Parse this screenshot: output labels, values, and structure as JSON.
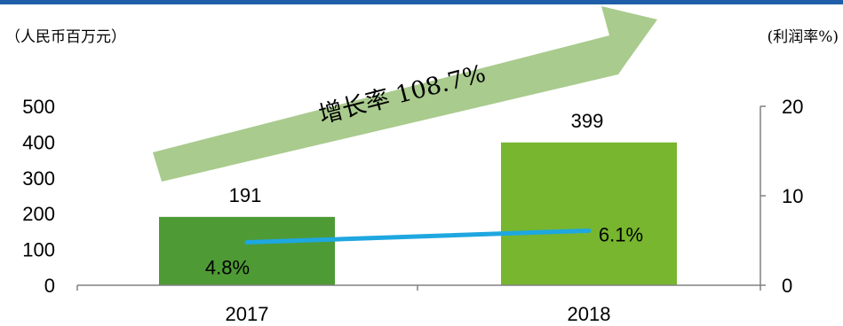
{
  "chart_data": {
    "type": "bar",
    "categories": [
      "2017",
      "2018"
    ],
    "left_axis": {
      "unit_label": "（人民币百万元）",
      "ylim": [
        0,
        500
      ],
      "ticks": [
        "0",
        "100",
        "200",
        "300",
        "400",
        "500"
      ]
    },
    "right_axis": {
      "unit_label": "(利润率%)",
      "ylim": [
        0,
        20
      ],
      "ticks": [
        "0",
        "10",
        "20"
      ]
    },
    "series": [
      {
        "kind": "bar",
        "values": [
          191,
          399
        ],
        "labels": [
          "191",
          "399"
        ],
        "colors": [
          "#4e9a35",
          "#77b62e"
        ]
      },
      {
        "kind": "line",
        "axis": "right",
        "values": [
          4.8,
          6.1
        ],
        "labels": [
          "4.8%",
          "6.1%"
        ],
        "color": "#1ea7e0"
      }
    ],
    "annotation": {
      "text": "增长率 108.7%",
      "arrow_color": "#a9cb8e"
    },
    "colors": {
      "top_rule": "#1f5ea8",
      "axis": "#808080"
    }
  }
}
